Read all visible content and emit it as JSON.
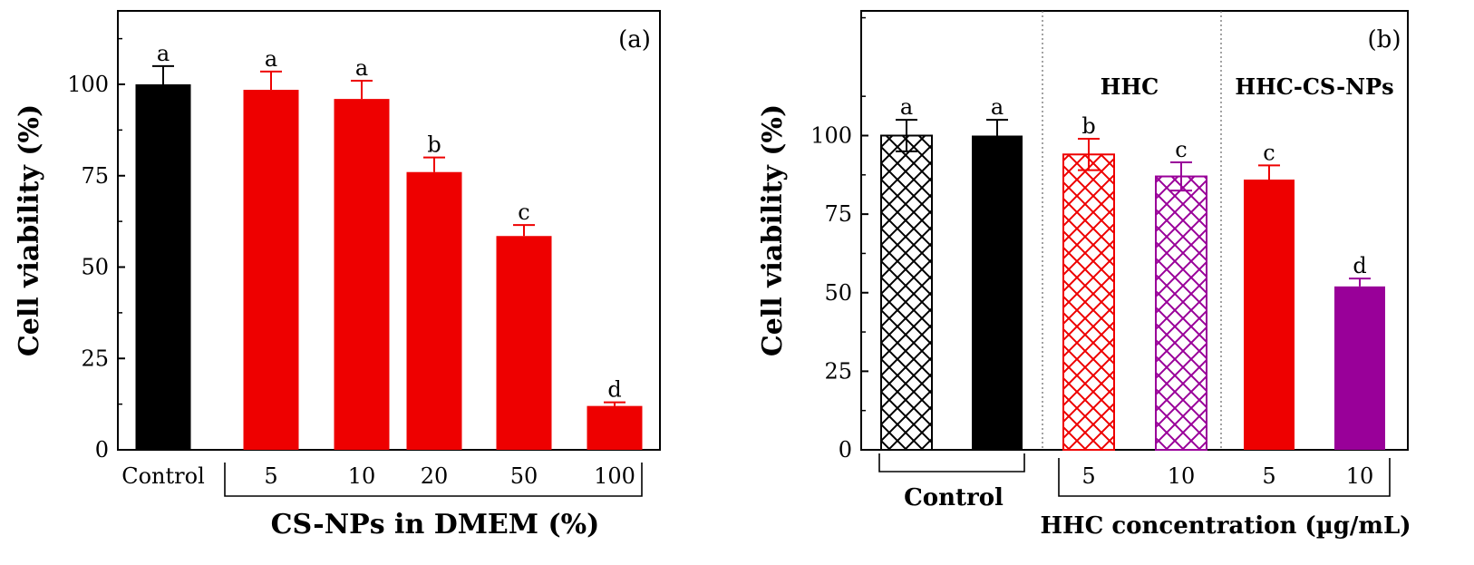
{
  "chart_data": [
    {
      "type": "bar",
      "panel_label": "(a)",
      "ylabel": "Cell viability (%)",
      "xlabel": "CS-NPs in DMEM (%)",
      "ylim": [
        0,
        120
      ],
      "yticks": [
        0,
        25,
        50,
        75,
        100
      ],
      "categories": [
        "Control",
        "5",
        "10",
        "20",
        "50",
        "100"
      ],
      "values": [
        100,
        98.5,
        96,
        76,
        58.5,
        12
      ],
      "errors": [
        5,
        5,
        5,
        4,
        3,
        1
      ],
      "letters": [
        "a",
        "a",
        "a",
        "b",
        "c",
        "d"
      ],
      "colors": [
        "#000000",
        "#ee0000",
        "#ee0000",
        "#ee0000",
        "#ee0000",
        "#ee0000"
      ],
      "patterns": [
        "solid",
        "solid",
        "solid",
        "solid",
        "solid",
        "solid"
      ]
    },
    {
      "type": "bar",
      "panel_label": "(b)",
      "ylabel": "Cell viability (%)",
      "xlabel": "HHC concentration (µg/mL)",
      "ylim": [
        0,
        140
      ],
      "yticks": [
        0,
        25,
        50,
        75,
        100
      ],
      "categories": [
        "",
        "",
        "5",
        "10",
        "5",
        "10"
      ],
      "values": [
        100,
        100,
        94,
        87,
        86,
        52
      ],
      "errors": [
        5,
        5,
        5,
        4.5,
        4.5,
        2.5
      ],
      "letters": [
        "a",
        "a",
        "b",
        "c",
        "c",
        "d"
      ],
      "colors": [
        "#000000",
        "#000000",
        "#ee0000",
        "#990099",
        "#ee0000",
        "#990099"
      ],
      "patterns": [
        "hatch",
        "solid",
        "hatch",
        "hatch",
        "solid",
        "solid"
      ],
      "group_labels": [
        "Control",
        "HHC",
        "HHC-CS-NPs"
      ]
    }
  ],
  "colors": {
    "black": "#000000",
    "red": "#ee0000",
    "purple": "#990099"
  }
}
